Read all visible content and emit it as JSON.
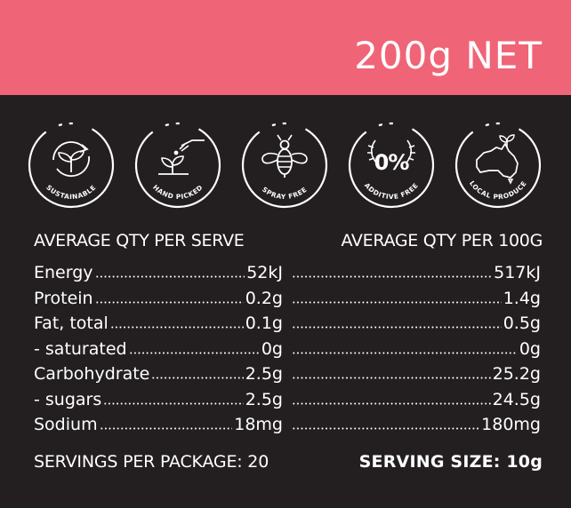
{
  "header": {
    "net_weight": "200g NET"
  },
  "badges": [
    {
      "label": "SUSTAINABLE",
      "icon": "sustainable-leaf-icon"
    },
    {
      "label": "HAND PICKED",
      "icon": "hand-picked-icon"
    },
    {
      "label": "SPRAY FREE",
      "icon": "bee-icon"
    },
    {
      "label": "ADDITIVE FREE",
      "center": "0%",
      "icon": "zero-percent-icon"
    },
    {
      "label": "LOCAL PRODUCE",
      "icon": "australia-map-icon"
    }
  ],
  "table": {
    "head_serve": "AVERAGE QTY PER SERVE",
    "head_100g": "AVERAGE QTY PER 100G",
    "rows": [
      {
        "label": "Energy",
        "serve": "52kJ",
        "per100": "517kJ"
      },
      {
        "label": "Protein",
        "serve": "0.2g",
        "per100": "1.4g"
      },
      {
        "label": "Fat, total",
        "serve": "0.1g",
        "per100": "0.5g"
      },
      {
        "label": "- saturated",
        "serve": "0g",
        "per100": "0g"
      },
      {
        "label": "Carbohydrate",
        "serve": "2.5g",
        "per100": "25.2g"
      },
      {
        "label": "- sugars",
        "serve": "2.5g",
        "per100": "24.5g"
      },
      {
        "label": "Sodium",
        "serve": "18mg",
        "per100": "180mg"
      }
    ]
  },
  "footer": {
    "servings": "SERVINGS PER PACKAGE: 20",
    "serving_size": "SERVING SIZE: 10g"
  },
  "colors": {
    "header_pink": "#f06478",
    "background": "#231f20",
    "text": "#ffffff"
  }
}
